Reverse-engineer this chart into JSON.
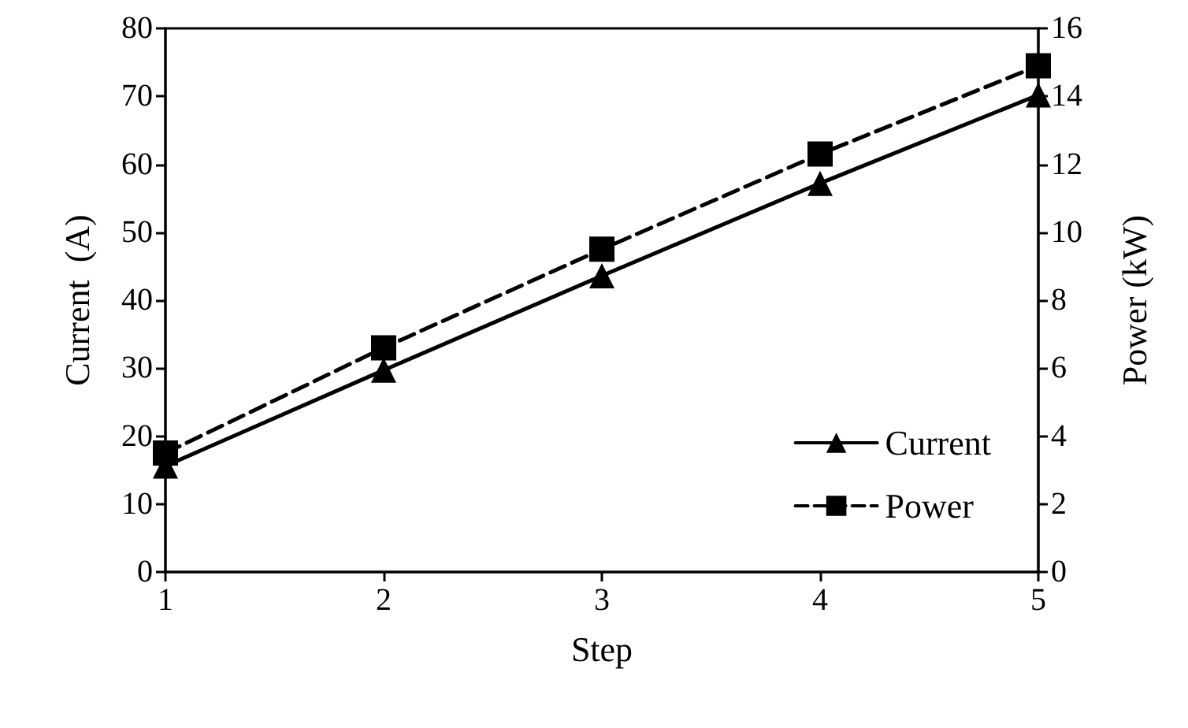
{
  "chart_data": {
    "type": "line",
    "xlabel": "Step",
    "ylabel": "Current  (A)",
    "y2label": "Power (kW)",
    "x": [
      1,
      2,
      3,
      4,
      5
    ],
    "xlim": [
      1,
      5
    ],
    "xticks": [
      1,
      2,
      3,
      4,
      5
    ],
    "ylim": [
      0,
      80
    ],
    "yticks": [
      0,
      10,
      20,
      30,
      40,
      50,
      60,
      70,
      80
    ],
    "y2lim": [
      0,
      16
    ],
    "y2ticks": [
      0,
      2,
      4,
      6,
      8,
      10,
      12,
      14,
      16
    ],
    "grid": false,
    "legend": "bottom right",
    "series": [
      {
        "name": "Current",
        "color": "#000000",
        "values": [
          15.6,
          29.7,
          43.6,
          57.2,
          70.2
        ],
        "marker": "triangle",
        "line_style": "solid"
      },
      {
        "name": "Power",
        "color": "#000000",
        "values": [
          3.5,
          6.6,
          9.5,
          12.3,
          14.9
        ],
        "marker": "square",
        "line_style": "dashed",
        "axis": "y2"
      }
    ]
  }
}
